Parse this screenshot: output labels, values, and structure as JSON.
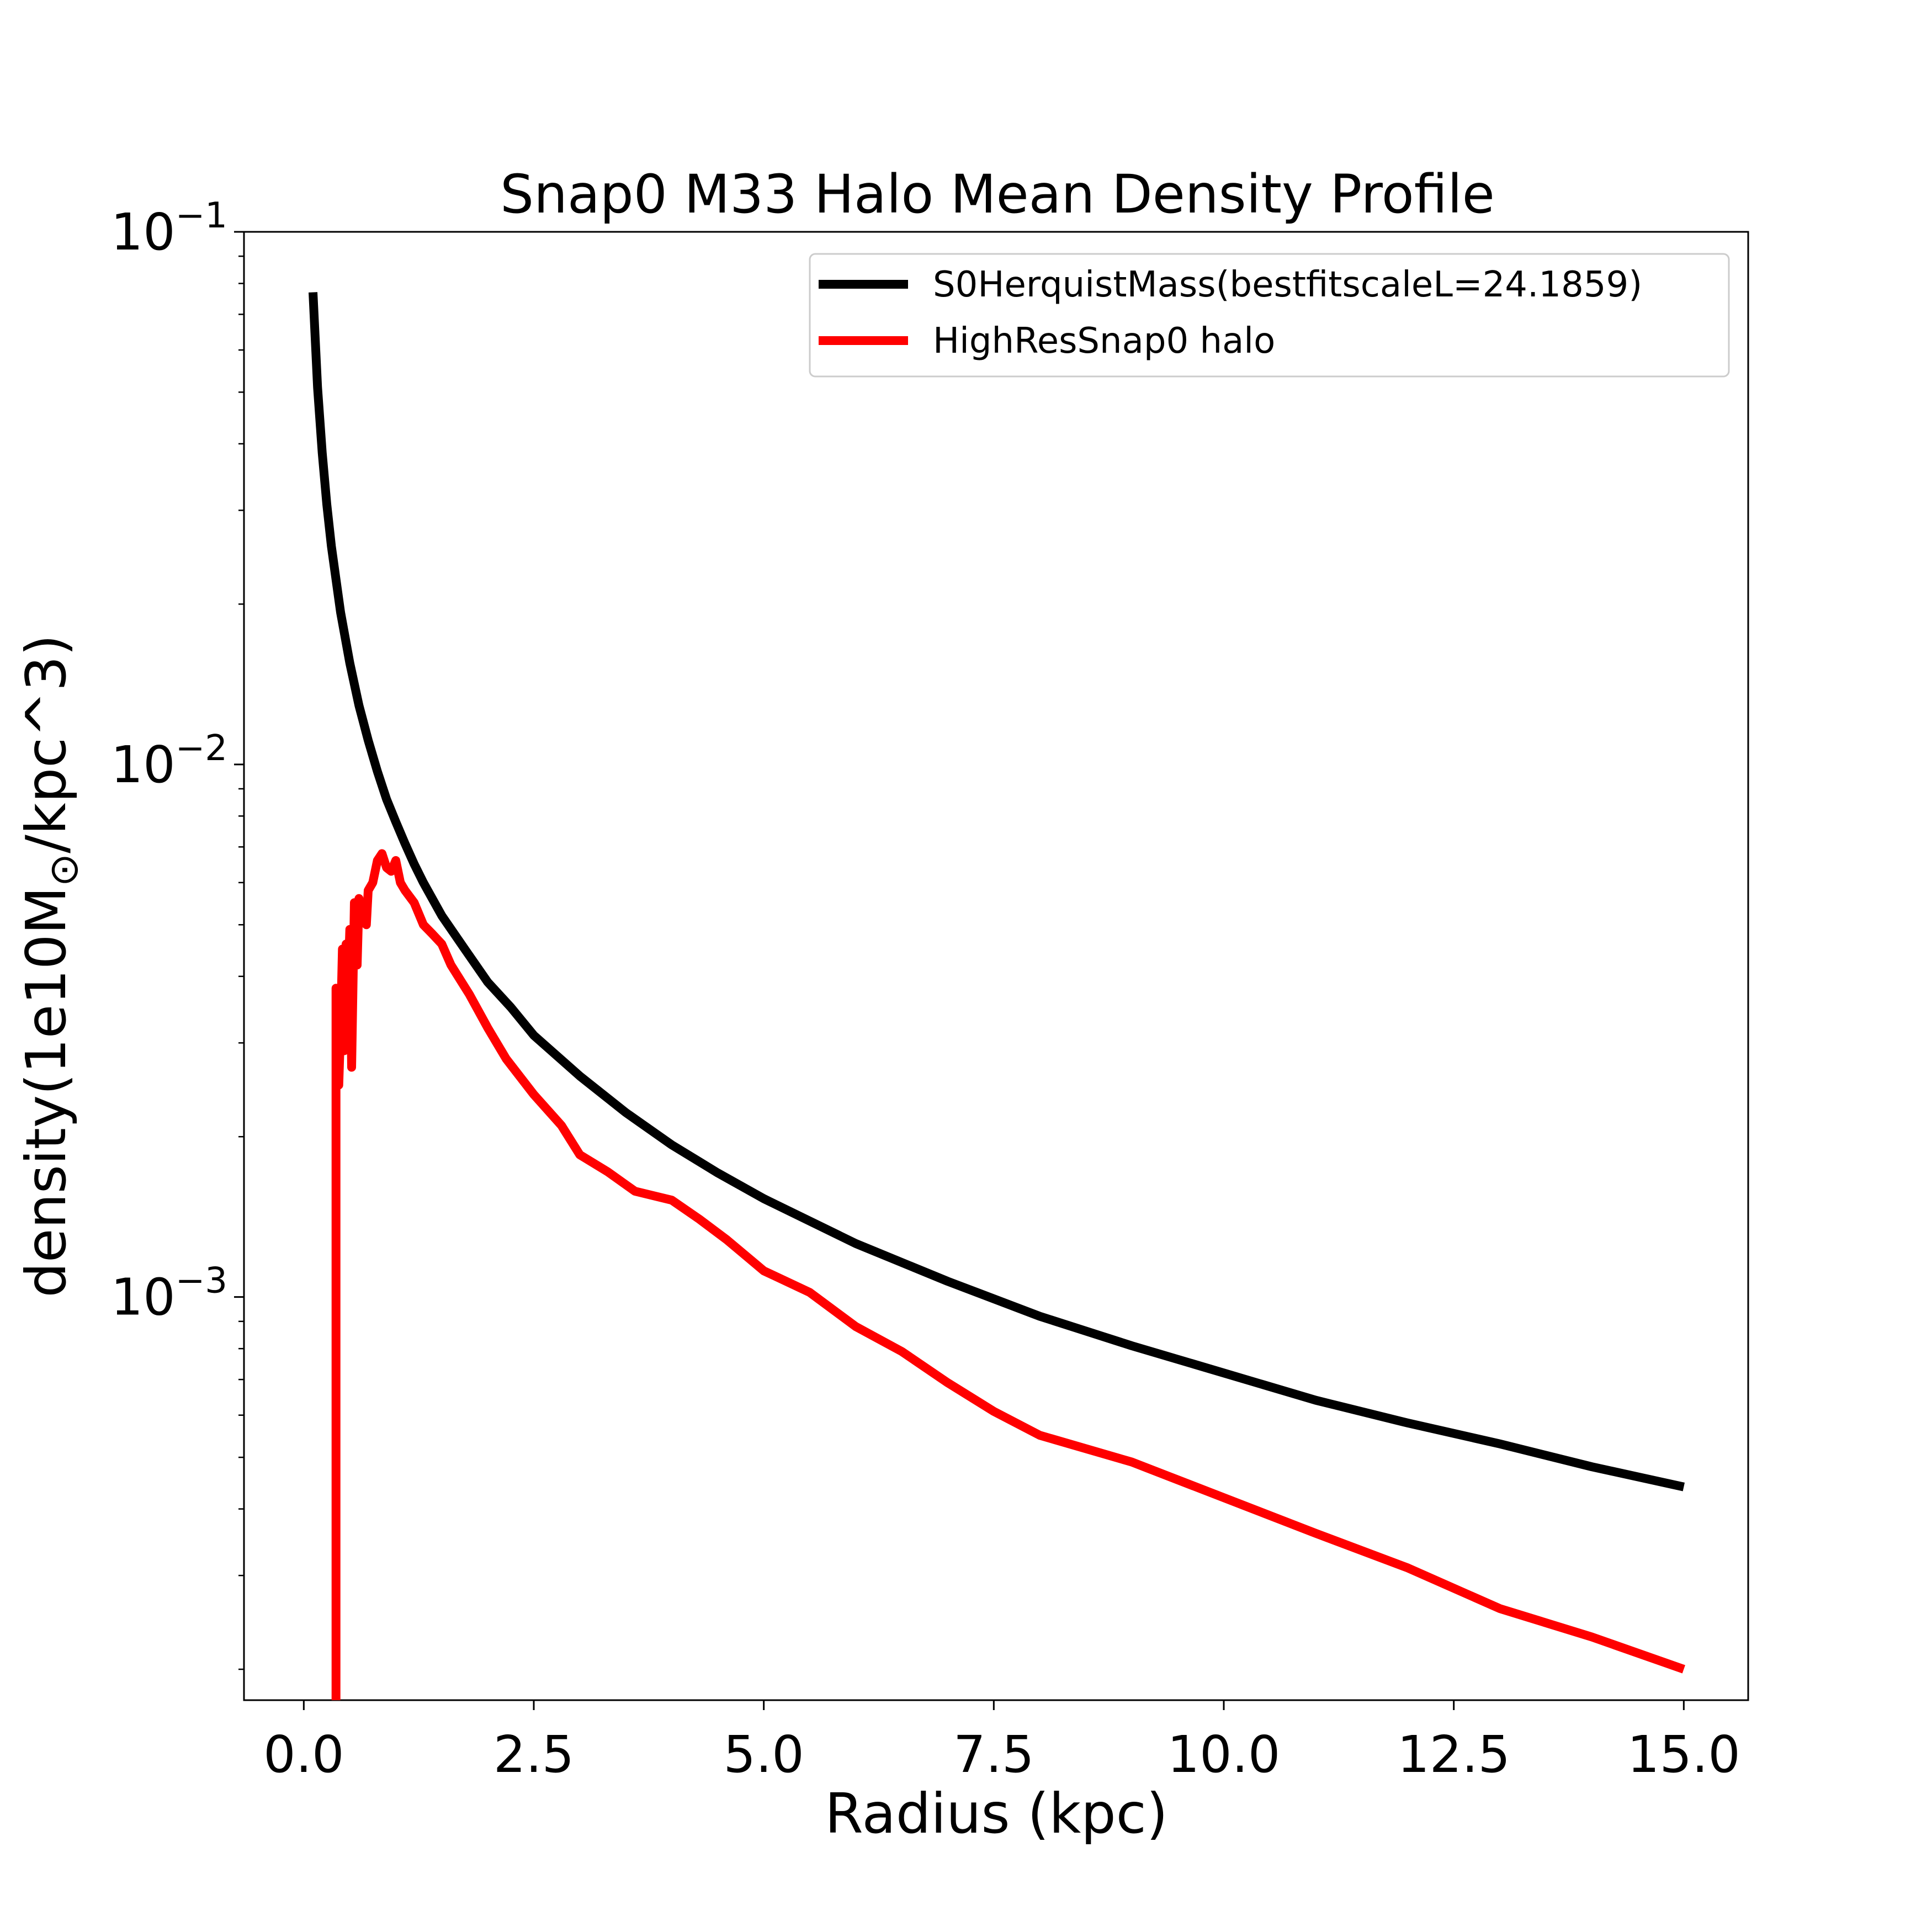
{
  "chart_data": {
    "type": "line",
    "title": "Snap0 M33 Halo Mean Density Profile",
    "xlabel": "Radius (kpc)",
    "ylabel": {
      "prefix": "density(1e10M",
      "subscript": "⊙",
      "suffix": "/kpc^3)"
    },
    "y_scale": "log",
    "xlim": [
      -0.65,
      15.7
    ],
    "ylim": [
      0.000175,
      0.1
    ],
    "x_ticks": [
      {
        "value": 0.0,
        "label": "0.0"
      },
      {
        "value": 2.5,
        "label": "2.5"
      },
      {
        "value": 5.0,
        "label": "5.0"
      },
      {
        "value": 7.5,
        "label": "7.5"
      },
      {
        "value": 10.0,
        "label": "10.0"
      },
      {
        "value": 12.5,
        "label": "12.5"
      },
      {
        "value": 15.0,
        "label": "15.0"
      }
    ],
    "y_ticks": [
      {
        "value": 0.1,
        "base": "10",
        "exp": "−1"
      },
      {
        "value": 0.01,
        "base": "10",
        "exp": "−2"
      },
      {
        "value": 0.001,
        "base": "10",
        "exp": "−3"
      }
    ],
    "y_minor_ticks": [
      0.0002,
      0.0003,
      0.0004,
      0.0005,
      0.0006,
      0.0007,
      0.0008,
      0.0009,
      0.002,
      0.003,
      0.004,
      0.005,
      0.006,
      0.007,
      0.008,
      0.009,
      0.02,
      0.03,
      0.04,
      0.05,
      0.06,
      0.07,
      0.08,
      0.09
    ],
    "legend": {
      "placement": "upper right"
    },
    "series": [
      {
        "name": "S0HerquistMass(bestfitscaleL=24.1859)",
        "color": "#000000",
        "x": [
          0.1,
          0.15,
          0.2,
          0.25,
          0.3,
          0.4,
          0.5,
          0.6,
          0.7,
          0.8,
          0.9,
          1.0,
          1.1,
          1.2,
          1.3,
          1.5,
          1.75,
          2.0,
          2.25,
          2.5,
          3.0,
          3.5,
          4.0,
          4.5,
          5.0,
          6.0,
          7.0,
          8.0,
          9.0,
          10.0,
          11.0,
          12.0,
          13.0,
          14.0,
          15.0
        ],
        "y": [
          0.077,
          0.051,
          0.0385,
          0.0308,
          0.0257,
          0.0193,
          0.0155,
          0.0129,
          0.0111,
          0.0097,
          0.0086,
          0.0078,
          0.0071,
          0.0065,
          0.006,
          0.0052,
          0.0045,
          0.0039,
          0.0035,
          0.0031,
          0.0026,
          0.00222,
          0.00193,
          0.00171,
          0.00153,
          0.00126,
          0.00107,
          0.00092,
          0.00081,
          0.00072,
          0.00064,
          0.00058,
          0.00053,
          0.00048,
          0.00044
        ]
      },
      {
        "name": "HighResSnap0 halo",
        "color": "#ff0000",
        "x": [
          0.35,
          0.35,
          0.38,
          0.4,
          0.42,
          0.44,
          0.46,
          0.48,
          0.5,
          0.52,
          0.55,
          0.58,
          0.6,
          0.62,
          0.65,
          0.68,
          0.7,
          0.75,
          0.8,
          0.85,
          0.9,
          0.95,
          1.0,
          1.05,
          1.1,
          1.2,
          1.3,
          1.4,
          1.5,
          1.6,
          1.8,
          2.0,
          2.2,
          2.5,
          2.8,
          3.0,
          3.3,
          3.6,
          4.0,
          4.3,
          4.6,
          5.0,
          5.5,
          6.0,
          6.5,
          7.0,
          7.5,
          8.0,
          9.0,
          10.0,
          11.0,
          12.0,
          13.0,
          14.0,
          15.0
        ],
        "y": [
          0.000175,
          0.0038,
          0.0025,
          0.0032,
          0.0045,
          0.0029,
          0.0046,
          0.0038,
          0.0049,
          0.0027,
          0.0055,
          0.0042,
          0.0056,
          0.0052,
          0.0054,
          0.005,
          0.0058,
          0.006,
          0.0066,
          0.0068,
          0.0064,
          0.0063,
          0.0066,
          0.006,
          0.0058,
          0.0055,
          0.005,
          0.0048,
          0.0046,
          0.0042,
          0.0037,
          0.0032,
          0.0028,
          0.0024,
          0.0021,
          0.00185,
          0.00172,
          0.00158,
          0.00152,
          0.0014,
          0.00128,
          0.00112,
          0.00102,
          0.00088,
          0.00079,
          0.00069,
          0.00061,
          0.00055,
          0.00049,
          0.00042,
          0.00036,
          0.00031,
          0.00026,
          0.00023,
          0.0002
        ]
      }
    ]
  }
}
